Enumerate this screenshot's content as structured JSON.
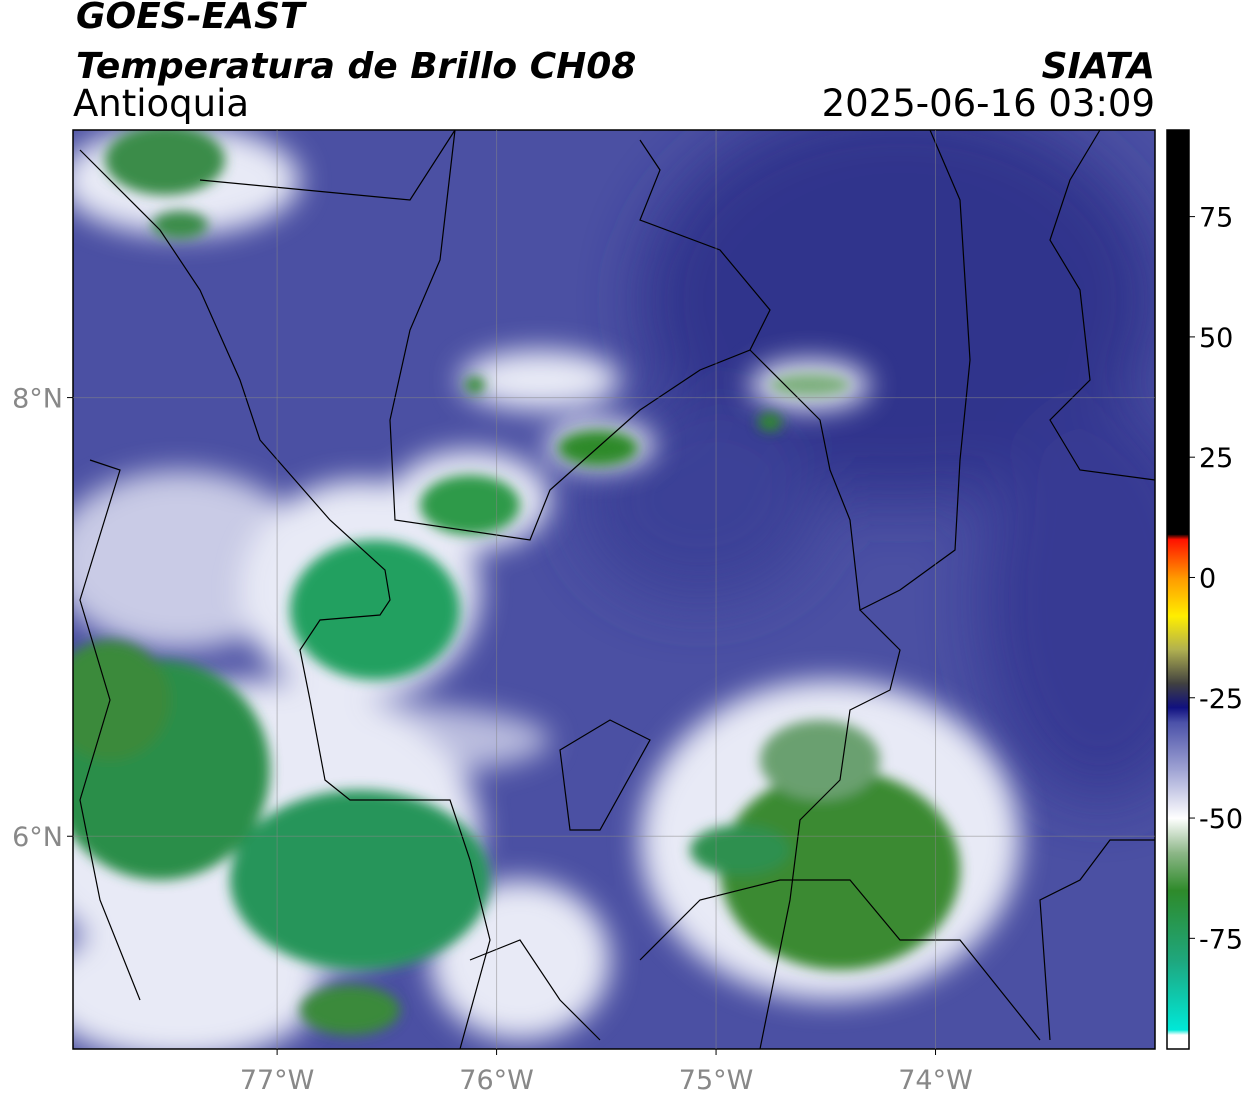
{
  "header": {
    "satellite": "GOES-EAST",
    "product": "Temperatura de Brillo CH08",
    "region": "Antioquia",
    "source": "SIATA",
    "datetime": "2025-06-16 03:09"
  },
  "map": {
    "xlim": [
      -77.93,
      -73.0
    ],
    "ylim": [
      5.03,
      9.22
    ],
    "xticks": [
      {
        "value": -77,
        "label": "77°W"
      },
      {
        "value": -76,
        "label": "76°W"
      },
      {
        "value": -75,
        "label": "75°W"
      },
      {
        "value": -74,
        "label": "74°W"
      }
    ],
    "yticks": [
      {
        "value": 8,
        "label": "8°N"
      },
      {
        "value": 6,
        "label": "6°N"
      }
    ],
    "grid": true
  },
  "colorbar": {
    "lim": [
      -98,
      93
    ],
    "ticks": [
      -75,
      -50,
      -25,
      0,
      25,
      50,
      75
    ],
    "colormap": [
      {
        "value": -98,
        "color": "#ffffff"
      },
      {
        "value": -95,
        "color": "#ffffff"
      },
      {
        "value": -94,
        "color": "#00e8d8"
      },
      {
        "value": -80,
        "color": "#1ea880"
      },
      {
        "value": -65,
        "color": "#2e8a2a"
      },
      {
        "value": -57,
        "color": "#8fb88a"
      },
      {
        "value": -50,
        "color": "#ffffff"
      },
      {
        "value": -40,
        "color": "#a0a4d4"
      },
      {
        "value": -30,
        "color": "#4a50a8"
      },
      {
        "value": -27,
        "color": "#101080"
      },
      {
        "value": -22,
        "color": "#404040"
      },
      {
        "value": -15,
        "color": "#b0b050"
      },
      {
        "value": -8,
        "color": "#ffee00"
      },
      {
        "value": 0,
        "color": "#ff9900"
      },
      {
        "value": 8,
        "color": "#ff1000"
      },
      {
        "value": 9,
        "color": "#000000"
      },
      {
        "value": 93,
        "color": "#000000"
      }
    ]
  }
}
